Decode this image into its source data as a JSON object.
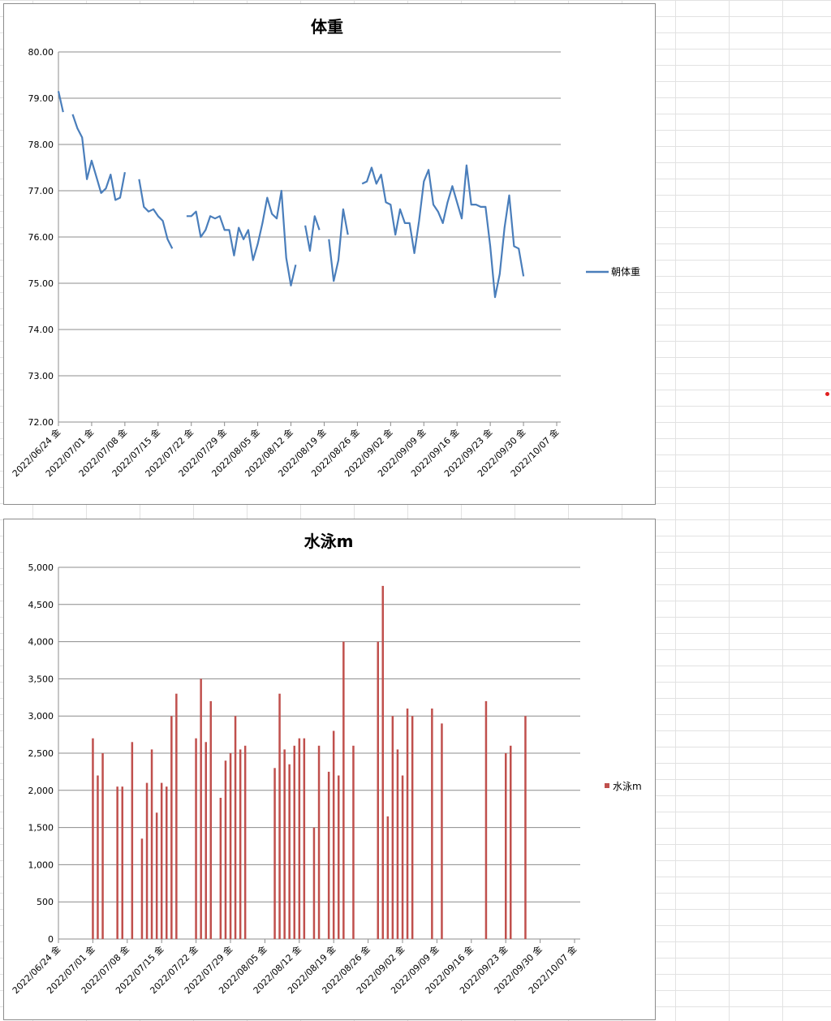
{
  "chart_data": [
    {
      "type": "line",
      "title": "体重",
      "xlabel": "",
      "ylabel": "",
      "ylim": [
        72,
        80
      ],
      "y_ticks": [
        "72.00",
        "73.00",
        "74.00",
        "75.00",
        "76.00",
        "77.00",
        "78.00",
        "79.00",
        "80.00"
      ],
      "x_tick_labels": [
        "2022/06/24 金",
        "2022/07/01 金",
        "2022/07/08 金",
        "2022/07/15 金",
        "2022/07/22 金",
        "2022/07/29 金",
        "2022/08/05 金",
        "2022/08/12 金",
        "2022/08/19 金",
        "2022/08/26 金",
        "2022/09/02 金",
        "2022/09/09 金",
        "2022/09/16 金",
        "2022/09/23 金",
        "2022/09/30 金",
        "2022/10/07 金"
      ],
      "xlim": [
        "2022-06-24",
        "2022-10-07"
      ],
      "grid": "horizontal",
      "legend": "right",
      "color": "#4a7ebb",
      "series": [
        {
          "name": "朝体重",
          "points": [
            [
              "2022-06-24",
              79.15
            ],
            [
              "2022-06-25",
              78.7
            ],
            [
              "2022-06-26",
              null
            ],
            [
              "2022-06-27",
              78.65
            ],
            [
              "2022-06-28",
              78.35
            ],
            [
              "2022-06-29",
              78.15
            ],
            [
              "2022-06-30",
              77.25
            ],
            [
              "2022-07-01",
              77.65
            ],
            [
              "2022-07-02",
              77.3
            ],
            [
              "2022-07-03",
              76.95
            ],
            [
              "2022-07-04",
              77.05
            ],
            [
              "2022-07-05",
              77.35
            ],
            [
              "2022-07-06",
              76.8
            ],
            [
              "2022-07-07",
              76.85
            ],
            [
              "2022-07-08",
              77.4
            ],
            [
              "2022-07-09",
              null
            ],
            [
              "2022-07-10",
              null
            ],
            [
              "2022-07-11",
              77.25
            ],
            [
              "2022-07-12",
              76.65
            ],
            [
              "2022-07-13",
              76.55
            ],
            [
              "2022-07-14",
              76.6
            ],
            [
              "2022-07-15",
              76.45
            ],
            [
              "2022-07-16",
              76.35
            ],
            [
              "2022-07-17",
              75.95
            ],
            [
              "2022-07-18",
              75.75
            ],
            [
              "2022-07-19",
              null
            ],
            [
              "2022-07-20",
              null
            ],
            [
              "2022-07-21",
              76.45
            ],
            [
              "2022-07-22",
              76.45
            ],
            [
              "2022-07-23",
              76.55
            ],
            [
              "2022-07-24",
              76.0
            ],
            [
              "2022-07-25",
              76.15
            ],
            [
              "2022-07-26",
              76.45
            ],
            [
              "2022-07-27",
              76.4
            ],
            [
              "2022-07-28",
              76.45
            ],
            [
              "2022-07-29",
              76.15
            ],
            [
              "2022-07-30",
              76.15
            ],
            [
              "2022-07-31",
              75.6
            ],
            [
              "2022-08-01",
              76.2
            ],
            [
              "2022-08-02",
              75.95
            ],
            [
              "2022-08-03",
              76.15
            ],
            [
              "2022-08-04",
              75.5
            ],
            [
              "2022-08-05",
              75.85
            ],
            [
              "2022-08-06",
              76.3
            ],
            [
              "2022-08-07",
              76.85
            ],
            [
              "2022-08-08",
              76.5
            ],
            [
              "2022-08-09",
              76.4
            ],
            [
              "2022-08-10",
              77.0
            ],
            [
              "2022-08-11",
              75.55
            ],
            [
              "2022-08-12",
              74.95
            ],
            [
              "2022-08-13",
              75.4
            ],
            [
              "2022-08-14",
              null
            ],
            [
              "2022-08-15",
              76.25
            ],
            [
              "2022-08-16",
              75.7
            ],
            [
              "2022-08-17",
              76.45
            ],
            [
              "2022-08-18",
              76.15
            ],
            [
              "2022-08-19",
              null
            ],
            [
              "2022-08-20",
              75.95
            ],
            [
              "2022-08-21",
              75.05
            ],
            [
              "2022-08-22",
              75.5
            ],
            [
              "2022-08-23",
              76.6
            ],
            [
              "2022-08-24",
              76.05
            ],
            [
              "2022-08-25",
              null
            ],
            [
              "2022-08-26",
              null
            ],
            [
              "2022-08-27",
              77.15
            ],
            [
              "2022-08-28",
              77.2
            ],
            [
              "2022-08-29",
              77.5
            ],
            [
              "2022-08-30",
              77.15
            ],
            [
              "2022-08-31",
              77.35
            ],
            [
              "2022-09-01",
              76.75
            ],
            [
              "2022-09-02",
              76.7
            ],
            [
              "2022-09-03",
              76.05
            ],
            [
              "2022-09-04",
              76.6
            ],
            [
              "2022-09-05",
              76.3
            ],
            [
              "2022-09-06",
              76.3
            ],
            [
              "2022-09-07",
              75.65
            ],
            [
              "2022-09-08",
              76.35
            ],
            [
              "2022-09-09",
              77.2
            ],
            [
              "2022-09-10",
              77.45
            ],
            [
              "2022-09-11",
              76.7
            ],
            [
              "2022-09-12",
              76.55
            ],
            [
              "2022-09-13",
              76.3
            ],
            [
              "2022-09-14",
              76.75
            ],
            [
              "2022-09-15",
              77.1
            ],
            [
              "2022-09-16",
              76.75
            ],
            [
              "2022-09-17",
              76.4
            ],
            [
              "2022-09-18",
              77.55
            ],
            [
              "2022-09-19",
              76.7
            ],
            [
              "2022-09-20",
              76.7
            ],
            [
              "2022-09-21",
              76.65
            ],
            [
              "2022-09-22",
              76.65
            ],
            [
              "2022-09-23",
              75.8
            ],
            [
              "2022-09-24",
              74.7
            ],
            [
              "2022-09-25",
              75.2
            ],
            [
              "2022-09-26",
              76.2
            ],
            [
              "2022-09-27",
              76.9
            ],
            [
              "2022-09-28",
              75.8
            ],
            [
              "2022-09-29",
              75.75
            ],
            [
              "2022-09-30",
              75.15
            ]
          ]
        }
      ]
    },
    {
      "type": "bar",
      "title": "水泳m",
      "xlabel": "",
      "ylabel": "",
      "ylim": [
        0,
        5000
      ],
      "y_ticks": [
        "0",
        "500",
        "1,000",
        "1,500",
        "2,000",
        "2,500",
        "3,000",
        "3,500",
        "4,000",
        "4,500",
        "5,000"
      ],
      "x_tick_labels": [
        "2022/06/24 金",
        "2022/07/01 金",
        "2022/07/08 金",
        "2022/07/15 金",
        "2022/07/22 金",
        "2022/07/29 金",
        "2022/08/05 金",
        "2022/08/12 金",
        "2022/08/19 金",
        "2022/08/26 金",
        "2022/09/02 金",
        "2022/09/09 金",
        "2022/09/16 金",
        "2022/09/23 金",
        "2022/09/30 金",
        "2022/10/07 金"
      ],
      "xlim": [
        "2022-06-24",
        "2022-10-07"
      ],
      "grid": "horizontal",
      "legend": "right",
      "color": "#c0504d",
      "series": [
        {
          "name": "水泳m",
          "points": [
            [
              "2022-07-01",
              2700
            ],
            [
              "2022-07-02",
              2200
            ],
            [
              "2022-07-03",
              2500
            ],
            [
              "2022-07-06",
              2050
            ],
            [
              "2022-07-07",
              2050
            ],
            [
              "2022-07-09",
              2650
            ],
            [
              "2022-07-11",
              1350
            ],
            [
              "2022-07-12",
              2100
            ],
            [
              "2022-07-13",
              2550
            ],
            [
              "2022-07-14",
              1700
            ],
            [
              "2022-07-15",
              2100
            ],
            [
              "2022-07-16",
              2050
            ],
            [
              "2022-07-17",
              3000
            ],
            [
              "2022-07-18",
              3300
            ],
            [
              "2022-07-22",
              2700
            ],
            [
              "2022-07-23",
              3500
            ],
            [
              "2022-07-24",
              2650
            ],
            [
              "2022-07-25",
              3200
            ],
            [
              "2022-07-27",
              1900
            ],
            [
              "2022-07-28",
              2400
            ],
            [
              "2022-07-29",
              2500
            ],
            [
              "2022-07-30",
              3000
            ],
            [
              "2022-07-31",
              2550
            ],
            [
              "2022-08-01",
              2600
            ],
            [
              "2022-08-07",
              2300
            ],
            [
              "2022-08-08",
              3300
            ],
            [
              "2022-08-09",
              2550
            ],
            [
              "2022-08-10",
              2350
            ],
            [
              "2022-08-11",
              2600
            ],
            [
              "2022-08-12",
              2700
            ],
            [
              "2022-08-13",
              2700
            ],
            [
              "2022-08-15",
              1500
            ],
            [
              "2022-08-16",
              2600
            ],
            [
              "2022-08-18",
              2250
            ],
            [
              "2022-08-19",
              2800
            ],
            [
              "2022-08-20",
              2200
            ],
            [
              "2022-08-21",
              4000
            ],
            [
              "2022-08-23",
              2600
            ],
            [
              "2022-08-28",
              4000
            ],
            [
              "2022-08-29",
              4750
            ],
            [
              "2022-08-30",
              1650
            ],
            [
              "2022-08-31",
              3000
            ],
            [
              "2022-09-01",
              2550
            ],
            [
              "2022-09-02",
              2200
            ],
            [
              "2022-09-03",
              3100
            ],
            [
              "2022-09-04",
              3000
            ],
            [
              "2022-09-08",
              3100
            ],
            [
              "2022-09-10",
              2900
            ],
            [
              "2022-09-19",
              3200
            ],
            [
              "2022-09-23",
              2500
            ],
            [
              "2022-09-24",
              2600
            ],
            [
              "2022-09-27",
              3000
            ]
          ]
        }
      ]
    }
  ]
}
